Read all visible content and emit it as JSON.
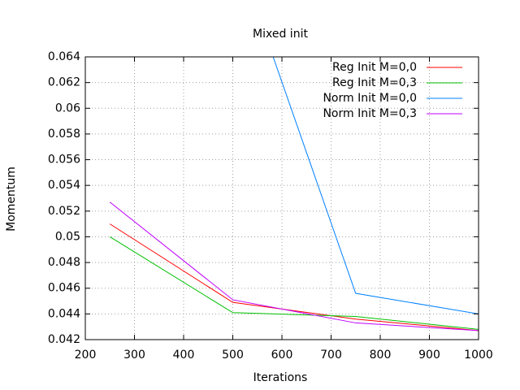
{
  "chart_data": {
    "type": "line",
    "title": "Mixed init",
    "x_label": "Iterations",
    "y_label": "Momentum",
    "x": [
      250,
      500,
      750,
      1000
    ],
    "series": [
      {
        "name": "Reg Init M=0,0",
        "color": "#ff0000",
        "values": [
          0.051,
          0.0449,
          0.0436,
          0.0427
        ]
      },
      {
        "name": "Reg Init M=0,3",
        "color": "#00c000",
        "values": [
          0.05,
          0.0441,
          0.0438,
          0.0428
        ]
      },
      {
        "name": "Norm Init M=0,0",
        "color": "#0080ff",
        "values": [
          null,
          0.073,
          0.0456,
          0.044
        ]
      },
      {
        "name": "Norm Init M=0,3",
        "color": "#c000ff",
        "values": [
          0.0527,
          0.0451,
          0.0433,
          0.0427
        ]
      }
    ],
    "xlim": [
      200,
      1000
    ],
    "xticks": [
      200,
      300,
      400,
      500,
      600,
      700,
      800,
      900,
      1000
    ],
    "ylim": [
      0.042,
      0.064
    ],
    "yticks": [
      0.042,
      0.044,
      0.046,
      0.048,
      0.05,
      0.052,
      0.054,
      0.056,
      0.058,
      0.06,
      0.062,
      0.064
    ],
    "grid": true,
    "legend_position": "top-right"
  }
}
